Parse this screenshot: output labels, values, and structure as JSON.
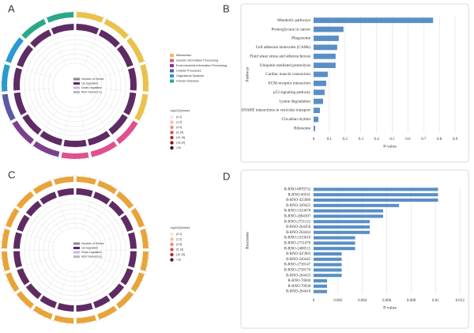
{
  "chart_data": [
    {
      "type": "circos",
      "panel_label": "A",
      "sector_colors": [
        "#e8c24a",
        "#e8c24a",
        "#e8c24a",
        "#e8c24a",
        "#e8c24a",
        "#e0508c",
        "#e0508c",
        "#e0508c",
        "#7b3f8c",
        "#7b3f8c",
        "#5a5aa8",
        "#2a9ad0",
        "#2a9ad0",
        "#2aa88a",
        "#2aa88a"
      ],
      "category_legend": [
        {
          "name": "Metabolism",
          "color": "#e8c24a"
        },
        {
          "name": "Genetic Information Processing",
          "color": "#e0508c"
        },
        {
          "name": "Environmental Information Processing",
          "color": "#7b3f8c"
        },
        {
          "name": "Cellular Processes",
          "color": "#5a5aa8"
        },
        {
          "name": "Organismal Systems",
          "color": "#2a9ad0"
        },
        {
          "name": "Human Diseases",
          "color": "#2aa88a"
        }
      ],
      "gene_legend": [
        {
          "name": "Number of Genes",
          "color": "#8a8a8a"
        },
        {
          "name": "Up-regulated",
          "color": "#5e2b63"
        },
        {
          "name": "Down-regulated",
          "color": "#b8c0dc"
        },
        {
          "name": "Rich Factor(0-1)",
          "color": "#bbbbbb"
        }
      ],
      "qvalue_title": "-log10(Qvalue)",
      "qvalue_legend": [
        {
          "name": "(0,1]",
          "color": "#fde3da"
        },
        {
          "name": "(1,2]",
          "color": "#f9bba6"
        },
        {
          "name": "(2,5]",
          "color": "#f08a72"
        },
        {
          "name": "(5,10]",
          "color": "#d9534a"
        },
        {
          "name": "(10,15]",
          "color": "#b22a2e"
        },
        {
          "name": "(15,20]",
          "color": "#8a1620"
        },
        {
          "name": ">20",
          "color": "#5c0a12"
        }
      ]
    },
    {
      "type": "hbar",
      "panel_label": "B",
      "xlabel": "P-value",
      "ylabel": "Pathway",
      "color": "#5a8fc6",
      "categories": [
        "Metabolic pathways",
        "Proteoglycans in cancer",
        "Phagosome",
        "Cell adhesion molecules (CAMs)",
        "Fluid shear stress and atherosclerosis",
        "Ubiquitin mediated proteolysis",
        "Cardiac muscle contraction",
        "ECM-receptor interaction",
        "p53 signaling pathway",
        "Lysine degradation",
        "SNARE interactions in vesicular transport",
        "Circadian rhythm",
        "Ribosome"
      ],
      "values": [
        0.76,
        0.19,
        0.16,
        0.15,
        0.14,
        0.14,
        0.09,
        0.08,
        0.07,
        0.06,
        0.04,
        0.03,
        0.01
      ],
      "xlim": [
        0,
        0.97
      ],
      "xticks": [
        0,
        0.1,
        0.2,
        0.3,
        0.4,
        0.5,
        0.6,
        0.7,
        0.8,
        0.9
      ],
      "grid": true
    },
    {
      "type": "circos",
      "panel_label": "C",
      "sector_colors": [
        "#e8a43a",
        "#e8a43a",
        "#e8a43a",
        "#e8a43a",
        "#e8a43a",
        "#e8a43a",
        "#e8a43a",
        "#e8a43a",
        "#e8a43a",
        "#e8a43a",
        "#e8a43a",
        "#e8a43a",
        "#e8a43a",
        "#e8a43a",
        "#e8a43a",
        "#e8a43a",
        "#e8a43a",
        "#e8a43a",
        "#e8a43a",
        "#e8a43a"
      ],
      "gene_legend": [
        {
          "name": "Number of Genes",
          "color": "#8a8a8a"
        },
        {
          "name": "Up-regulated",
          "color": "#5e2b63"
        },
        {
          "name": "Down-regulated",
          "color": "#b8c0dc"
        },
        {
          "name": "Rich Factor(0-1)",
          "color": "#bbbbbb"
        }
      ],
      "qvalue_title": "-log10(Qvalue)",
      "qvalue_legend": [
        {
          "name": "(0,1]",
          "color": "#fde3da"
        },
        {
          "name": "(1,2]",
          "color": "#f9bba6"
        },
        {
          "name": "(2,5]",
          "color": "#f08a72"
        },
        {
          "name": "(5,10]",
          "color": "#d9534a"
        },
        {
          "name": "(10,15]",
          "color": "#b22a2e"
        },
        {
          "name": ">15",
          "color": "#6a0e16"
        }
      ]
    },
    {
      "type": "hbar",
      "panel_label": "D",
      "xlabel": "P-value",
      "ylabel": "Reactome",
      "color": "#5a8fc6",
      "categories": [
        "R-RNO-8870732",
        "R-RNO-69541",
        "R-RNO-425986",
        "R-RNO-349425",
        "R-RNO-5333678",
        "R-RNO-2684307",
        "R-RNO-2731122",
        "R-RNO-264458",
        "R-RNO-264444",
        "R-RNO-5333610",
        "R-RNO-2731078",
        "R-RNO-2408515",
        "R-RNO-425983",
        "R-RNO-249445",
        "R-RNO-2738147",
        "R-RNO-2738176",
        "R-RNO-264435",
        "R-RNO-70040",
        "R-RNO-70938",
        "R-RNO-264418"
      ],
      "values": [
        0.0102,
        0.0102,
        0.0102,
        0.007,
        0.0057,
        0.0057,
        0.0046,
        0.0046,
        0.0046,
        0.0034,
        0.0034,
        0.0034,
        0.0023,
        0.0023,
        0.0023,
        0.0023,
        0.0023,
        0.0011,
        0.0011,
        0.0011
      ],
      "xlim": [
        0,
        0.0125
      ],
      "xticks": [
        0,
        0.002,
        0.004,
        0.006,
        0.008,
        0.01,
        0.012
      ],
      "grid": true
    }
  ]
}
